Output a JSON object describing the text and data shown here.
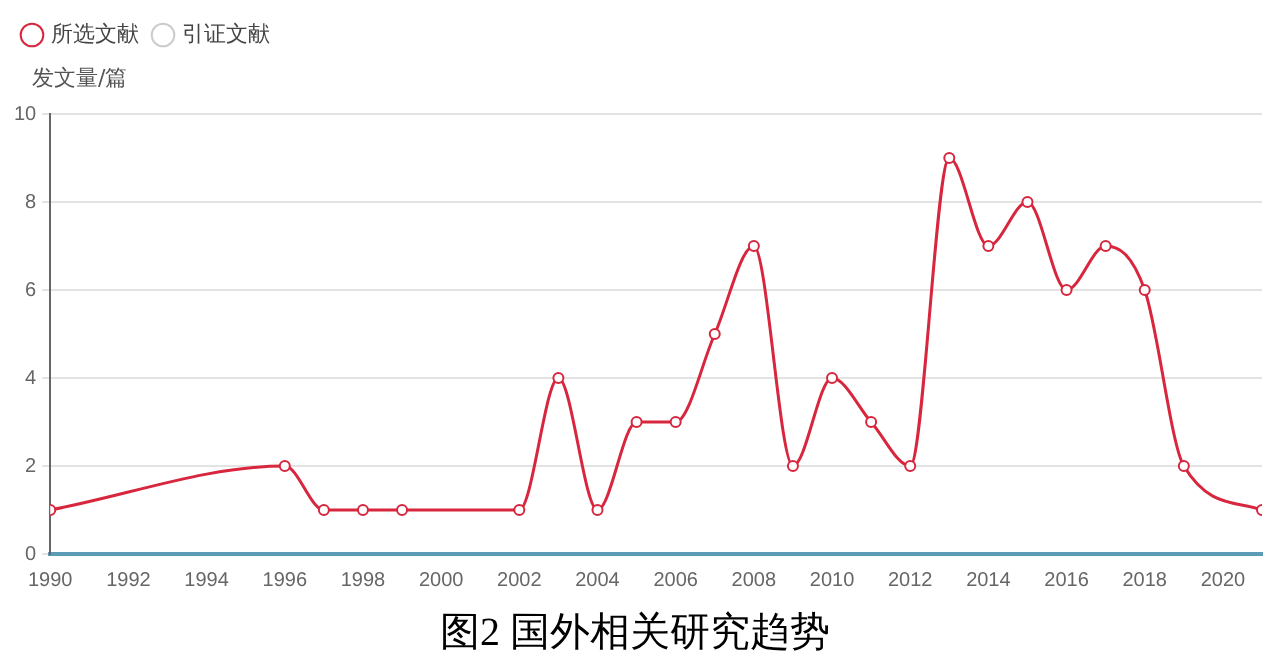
{
  "chart_data": {
    "type": "line",
    "title": "图2 国外相关研究趋势",
    "ylabel": "发文量/篇",
    "x": [
      1990,
      1996,
      1997,
      1998,
      1999,
      2002,
      2003,
      2004,
      2005,
      2006,
      2007,
      2008,
      2009,
      2010,
      2011,
      2012,
      2013,
      2014,
      2015,
      2016,
      2017,
      2018,
      2019,
      2021
    ],
    "series": [
      {
        "name": "所选文献",
        "color": "#d7263d",
        "values": [
          1,
          2,
          1,
          1,
          1,
          1,
          4,
          1,
          3,
          3,
          5,
          7,
          2,
          4,
          3,
          2,
          9,
          7,
          8,
          6,
          7,
          6,
          2,
          1
        ]
      },
      {
        "name": "引证文献",
        "color": "#cccccc",
        "values": [
          null,
          null,
          null,
          null,
          null,
          null,
          null,
          null,
          null,
          null,
          null,
          null,
          null,
          null,
          null,
          null,
          null,
          null,
          null,
          null,
          null,
          null,
          null,
          null
        ]
      }
    ],
    "xlim": [
      1990,
      2021
    ],
    "xticks": [
      1990,
      1992,
      1994,
      1996,
      1998,
      2000,
      2002,
      2004,
      2006,
      2008,
      2010,
      2012,
      2014,
      2016,
      2018,
      2020
    ],
    "ylim": [
      0,
      10
    ],
    "yticks": [
      0,
      2,
      4,
      6,
      8,
      10
    ],
    "grid": "y",
    "legend": "top left",
    "marker": "circle",
    "line_style": "solid"
  }
}
